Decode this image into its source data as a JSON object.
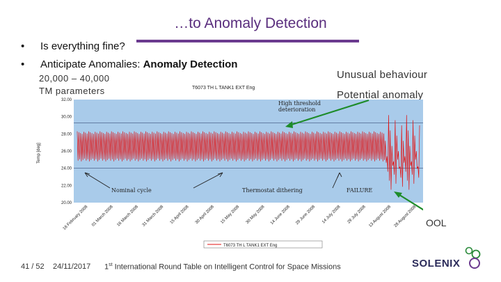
{
  "slide": {
    "title": "…to Anomaly Detection",
    "bullets": [
      {
        "dot": "•",
        "text": "Is everything fine?"
      },
      {
        "dot": "•",
        "text": "Anticipate Anomalies: ",
        "bold": "Anomaly Detection"
      }
    ],
    "params_line1": "20,000 – 40,000",
    "params_line2": "TM parameters",
    "callouts": {
      "unusual": "Unusual behaviour",
      "potential": "Potential anomaly",
      "ool": "OOL"
    },
    "footer": {
      "page": "41 / 52",
      "date": "24/11/2017",
      "event_pre": "1",
      "event_sup": "st",
      "event_post": " International Round Table on Intelligent Control for Space Missions"
    },
    "logo_text": "SOLENIX",
    "colors": {
      "title": "#5a2e7e",
      "plot_bg": "#a9cbea",
      "signal": "#e01010",
      "arrow": "#1e8c2a"
    }
  },
  "chart_data": {
    "type": "line",
    "title": "T6073 TH L TANK1 EXT Eng",
    "ylabel": "Temp [deg]",
    "ylim": [
      20,
      32
    ],
    "yticks": [
      "32.00",
      "30.00",
      "28.00",
      "26.00",
      "24.00",
      "22.00",
      "20.00"
    ],
    "x_tick_labels": [
      "16 February 2008",
      "01 March 2008",
      "16 March 2008",
      "31 March 2008",
      "15 April 2008",
      "30 April 2008",
      "15 May 2008",
      "30 May 2008",
      "14 June 2008",
      "29 June 2008",
      "14 July 2008",
      "29 July 2008",
      "13 August 2008",
      "28 August 2008"
    ],
    "legend": "T6073 TH L TANK1 EXT Eng",
    "normal_band": [
      24.8,
      28.3
    ],
    "threshold_lines": [
      24.0,
      29.3
    ],
    "annotations": [
      "High threshold",
      "deterioration",
      "Nominal cycle",
      "Thermostat dithering",
      "FAILURE"
    ]
  }
}
